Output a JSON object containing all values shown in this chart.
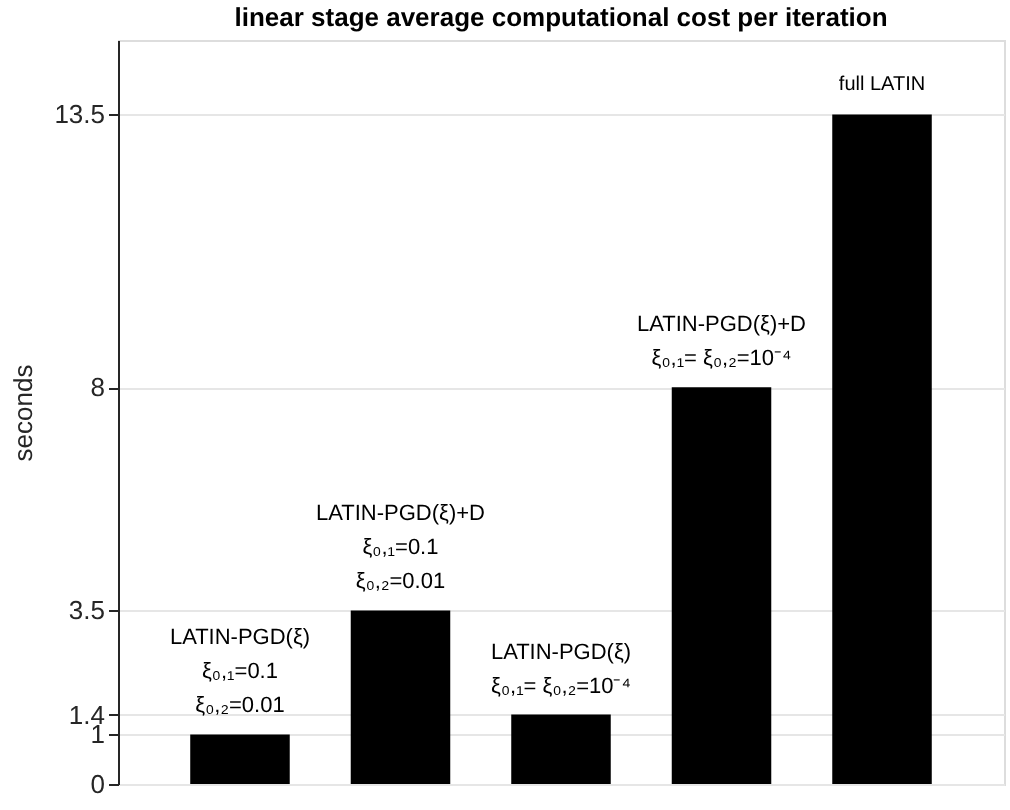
{
  "chart_data": {
    "type": "bar",
    "title": "linear stage average computational cost per iteration",
    "ylabel": "seconds",
    "categories": [
      null,
      null,
      null,
      null,
      null
    ],
    "values": [
      1,
      3.5,
      1.4,
      8,
      13.5
    ],
    "color": "#000000",
    "ylim": [
      0,
      15
    ],
    "yticks": [
      0,
      1,
      1.4,
      3.5,
      8,
      13.5
    ],
    "grid": "y",
    "tick_labels": "y",
    "annotations": [
      {
        "text": "LATIN-PGD(ξ)\nξ₀,₁=0.1\nξ₀,₂=0.01",
        "y": 1
      },
      {
        "text": "LATIN-PGD(ξ)+D\nξ₀,₁=0.1\nξ₀,₂=0.01",
        "y": 3.5
      },
      {
        "text": "LATIN-PGD(ξ)\nξ₀,₁= ξ₀,₂=10⁻⁴",
        "y": 1.4
      },
      {
        "text": "LATIN-PGD(ξ)+D\nξ₀,₁= ξ₀,₂=10⁻⁴",
        "y": 8
      },
      {
        "text": "full LATIN",
        "y": 13.5
      }
    ]
  }
}
